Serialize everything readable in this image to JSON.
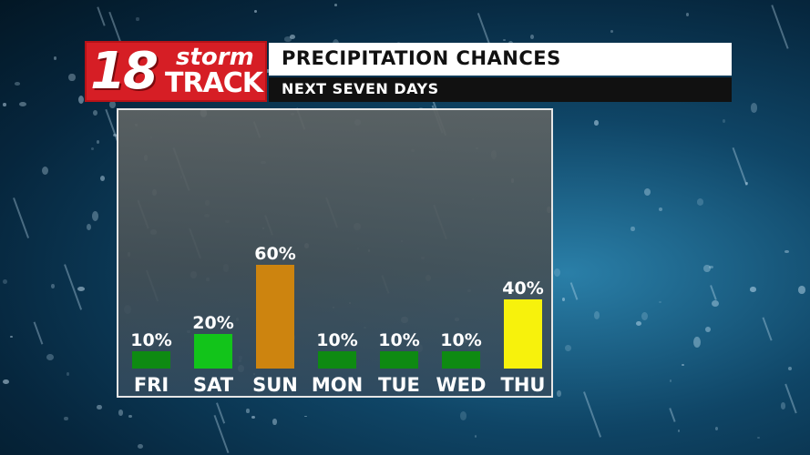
{
  "logo": {
    "number": "18",
    "storm": "storm",
    "track": "TRACK"
  },
  "header": {
    "title": "PRECIPITATION CHANCES",
    "subtitle": "NEXT SEVEN DAYS"
  },
  "colors": {
    "low": "#0e8a12",
    "moderate": "#12c41a",
    "high": "#cd840f",
    "elevated": "#f7f20c"
  },
  "chart_data": {
    "type": "bar",
    "title": "PRECIPITATION CHANCES",
    "subtitle": "NEXT SEVEN DAYS",
    "categories": [
      "FRI",
      "SAT",
      "SUN",
      "MON",
      "TUE",
      "WED",
      "THU"
    ],
    "values": [
      10,
      20,
      60,
      10,
      10,
      10,
      40
    ],
    "value_labels": [
      "10%",
      "20%",
      "60%",
      "10%",
      "10%",
      "10%",
      "40%"
    ],
    "bar_colors": [
      "#0e8a12",
      "#12c41a",
      "#cd840f",
      "#0e8a12",
      "#0e8a12",
      "#0e8a12",
      "#f7f20c"
    ],
    "ylim": [
      0,
      100
    ],
    "grid": false,
    "legend": "none"
  }
}
